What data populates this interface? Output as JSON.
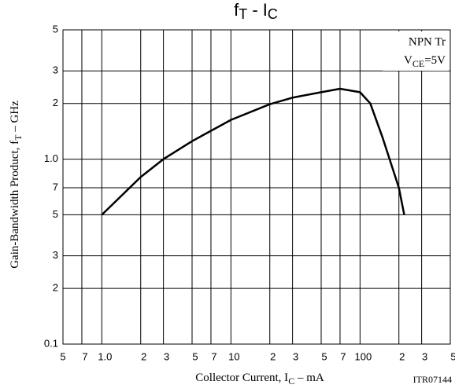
{
  "chart_data": {
    "type": "line",
    "title": [
      "f",
      "T",
      " - I",
      "C"
    ],
    "x_label": [
      "Collector Current, I",
      "C",
      " – mA"
    ],
    "y_label": [
      "Gain-Bandwidth Product, f",
      "T",
      " – GHz"
    ],
    "annotation": [
      "NPN Tr",
      "V",
      "CE",
      "=5V"
    ],
    "code": "ITR07144",
    "xscale": "log",
    "yscale": "log",
    "grid": true,
    "color": "#000000",
    "xlim": [
      0.5,
      500
    ],
    "xticks": [
      {
        "value": 0.5,
        "label": "5"
      },
      {
        "value": 0.7,
        "label": "7"
      },
      {
        "value": 1,
        "label": "1.0"
      },
      2,
      3,
      5,
      7,
      10,
      {
        "value": 20,
        "label": "2"
      },
      {
        "value": 30,
        "label": "3"
      },
      {
        "value": 50,
        "label": "5"
      },
      {
        "value": 70,
        "label": "7"
      },
      100,
      {
        "value": 200,
        "label": "2"
      },
      {
        "value": 300,
        "label": "3"
      },
      {
        "value": 500,
        "label": "5"
      }
    ],
    "ylim": [
      0.1,
      5
    ],
    "yticks": [
      0.1,
      {
        "value": 0.2,
        "label": "2"
      },
      {
        "value": 0.3,
        "label": "3"
      },
      {
        "value": 0.5,
        "label": "5"
      },
      {
        "value": 0.7,
        "label": "7"
      },
      {
        "value": 1,
        "label": "1.0"
      },
      2,
      3,
      5
    ],
    "x": [
      1,
      2,
      3,
      5,
      10,
      20,
      30,
      50,
      70,
      100,
      120,
      150,
      200,
      220
    ],
    "values": [
      0.5,
      0.8,
      1.0,
      1.25,
      1.63,
      1.98,
      2.15,
      2.3,
      2.4,
      2.3,
      2.0,
      1.3,
      0.7,
      0.5
    ]
  }
}
